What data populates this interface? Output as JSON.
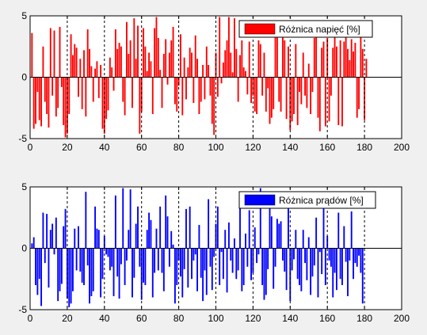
{
  "chart_data": [
    {
      "type": "bar",
      "legend": "Różnica napięć [%]",
      "legend_position": "top-right",
      "color": "#ff0000",
      "xlim": [
        0,
        200
      ],
      "ylim": [
        -5,
        5
      ],
      "xticks": [
        0,
        20,
        40,
        60,
        80,
        100,
        120,
        140,
        160,
        180,
        200
      ],
      "yticks": [
        -5,
        0,
        5
      ],
      "vlines_dashed": [
        20,
        40,
        60,
        80,
        100,
        120,
        140,
        160,
        180
      ],
      "x_start": 1,
      "values": [
        3.6,
        -4.2,
        -3.8,
        -1.2,
        -3.5,
        -4.0,
        2.5,
        -2.0,
        -3.0,
        -4.1,
        4.0,
        -1.5,
        3.8,
        -3.2,
        -2.5,
        4.1,
        -0.8,
        -3.9,
        -4.9,
        -4.6,
        -3.0,
        3.5,
        1.8,
        2.7,
        2.4,
        -1.6,
        1.5,
        -2.6,
        2.2,
        -3.2,
        3.9,
        2.3,
        0.9,
        -2.0,
        0.7,
        1.3,
        -1.7,
        1.0,
        -4.2,
        -4.6,
        -3.4,
        -2.7,
        1.6,
        0.8,
        -1.1,
        3.9,
        2.3,
        2.8,
        2.5,
        -2.0,
        -3.1,
        4.5,
        1.9,
        3.0,
        -2.5,
        4.8,
        1.5,
        4.2,
        -4.6,
        -2.8,
        4.0,
        2.5,
        0.5,
        2.0,
        1.3,
        -3.0,
        4.0,
        4.9,
        3.2,
        0.6,
        -2.5,
        1.9,
        3.1,
        -0.6,
        2.0,
        3.0,
        4.1,
        -2.2,
        -2.8,
        -0.7,
        3.5,
        -3.1,
        1.6,
        -1.8,
        0.8,
        2.4,
        2.0,
        -2.1,
        3.4,
        1.5,
        -3.0,
        -2.0,
        1.0,
        -1.8,
        2.5,
        1.0,
        -1.5,
        -3.8,
        -4.7,
        2.0,
        -1.6,
        4.9,
        -0.5,
        1.2,
        2.2,
        3.0,
        4.9,
        2.0,
        0.4,
        4.8,
        2.3,
        -2.0,
        1.8,
        3.0,
        0.8,
        0.5,
        -1.4,
        2.9,
        -2.1,
        -1.5,
        -2.8,
        -3.0,
        3.0,
        2.7,
        -1.5,
        2.0,
        -2.8,
        -0.9,
        -3.8,
        -3.3,
        -2.6,
        3.3,
        3.7,
        -2.0,
        -2.8,
        3.5,
        3.0,
        -3.4,
        2.5,
        -4.3,
        -3.6,
        -3.0,
        2.7,
        -3.9,
        -1.2,
        -2.2,
        2.0,
        -1.5,
        -2.5,
        1.1,
        -3.0,
        -1.2,
        3.2,
        4.4,
        -3.3,
        -4.4,
        2.4,
        2.9,
        -4.0,
        3.2,
        -3.6,
        -1.5,
        2.4,
        3.7,
        2.5,
        -3.9,
        3.0,
        -4.0,
        2.9,
        4.1,
        2.3,
        1.4,
        3.1,
        2.1,
        2.8,
        -3.3,
        -2.6,
        4.3,
        2.3,
        -3.5,
        1.5
      ]
    },
    {
      "type": "bar",
      "legend": "Różnica prądów [%]",
      "legend_position": "top-right",
      "color": "#0000ff",
      "xlim": [
        0,
        200
      ],
      "ylim": [
        -5,
        5
      ],
      "xticks": [
        0,
        20,
        40,
        60,
        80,
        100,
        120,
        140,
        160,
        180,
        200
      ],
      "yticks": [
        -5,
        0,
        5
      ],
      "vlines_dashed": [
        20,
        40,
        60,
        80,
        100,
        120,
        140,
        160,
        180
      ],
      "x_start": 1,
      "values": [
        0.4,
        0.9,
        -3.0,
        -3.8,
        -2.5,
        -4.7,
        2.9,
        -1.2,
        2.8,
        -3.2,
        1.5,
        2.0,
        -0.5,
        2.5,
        -4.3,
        -3.5,
        -2.9,
        1.8,
        3.2,
        -4.1,
        -4.8,
        -4.5,
        -3.5,
        1.6,
        -1.8,
        1.8,
        -1.9,
        -2.8,
        -3.0,
        4.6,
        -1.4,
        -4.5,
        -3.9,
        -3.5,
        3.4,
        1.6,
        1.5,
        -4.0,
        -2.5,
        1.0,
        -0.5,
        -0.7,
        -1.8,
        -1.5,
        -3.9,
        4.3,
        -2.3,
        -4.1,
        -1.3,
        4.9,
        -3.0,
        -1.0,
        1.5,
        4.8,
        -4.0,
        -2.4,
        2.0,
        3.4,
        -1.5,
        -4.2,
        -2.8,
        -3.0,
        1.5,
        2.9,
        2.3,
        -4.0,
        -2.0,
        1.6,
        -1.8,
        3.4,
        -2.0,
        -3.5,
        4.3,
        2.6,
        -1.5,
        1.4,
        0.3,
        -4.5,
        -3.0,
        -1.0,
        -2.3,
        -4.0,
        -1.7,
        3.2,
        -3.2,
        3.4,
        -2.5,
        -1.0,
        -0.5,
        -3.5,
        1.9,
        -2.4,
        -4.3,
        -1.8,
        -3.8,
        4.0,
        -1.5,
        -3.4,
        -0.7,
        2.0,
        3.4,
        -3.0,
        -0.3,
        -2.5,
        1.5,
        -3.6,
        2.1,
        -1.0,
        -2.0,
        0.8,
        -2.5,
        -1.8,
        4.1,
        -3.5,
        -3.0,
        1.2,
        -1.5,
        3.1,
        -2.6,
        -2.0,
        1.7,
        -1.2,
        -0.5,
        4.9,
        -3.0,
        -4.2,
        -3.8,
        -1.7,
        4.1,
        2.6,
        -3.3,
        -1.5,
        2.4,
        2.0,
        2.2,
        -1.0,
        -1.9,
        -3.4,
        3.4,
        -4.3,
        -1.8,
        -0.9,
        1.5,
        -2.5,
        -3.0,
        -3.5,
        1.5,
        -1.2,
        -2.6,
        0.9,
        -3.8,
        -2.3,
        -1.4,
        2.5,
        -4.0,
        -0.3,
        -2.1,
        4.0,
        -3.0,
        1.0,
        -1.0,
        -1.5,
        -4.0,
        -2.0,
        -3.4,
        2.9,
        -2.5,
        -3.0,
        1.8,
        -1.1,
        -3.9,
        -1.0,
        3.0,
        -2.5,
        -1.2,
        -1.5,
        -0.6,
        -2.0,
        -4.5
      ]
    }
  ]
}
